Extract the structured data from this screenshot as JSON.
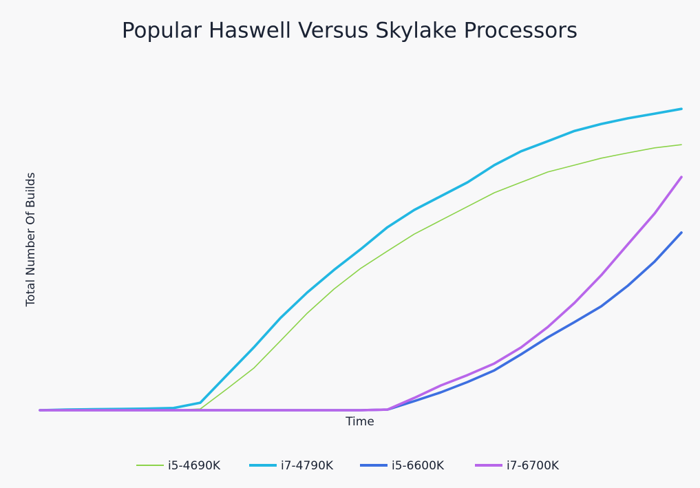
{
  "chart_data": {
    "type": "line",
    "title": "Popular Haswell Versus Skylake Processors",
    "xlabel": "Time",
    "ylabel": "Total Number Of Builds",
    "categories": [
      null,
      null,
      null,
      null,
      null,
      null,
      null,
      null,
      null,
      null,
      null,
      null,
      null,
      null,
      null,
      null,
      null,
      null,
      null,
      null,
      null,
      null,
      null,
      null,
      null
    ],
    "ylim": [
      0,
      100
    ],
    "series": [
      {
        "name": "i5-4690K",
        "color": "#8cd34a",
        "width": "thin",
        "values": [
          0,
          0,
          0,
          0,
          0,
          0,
          0.4,
          6.8,
          13.4,
          22.1,
          30.9,
          38.6,
          45.2,
          50.7,
          56.1,
          60.5,
          64.9,
          69.3,
          72.6,
          75.9,
          78.1,
          80.3,
          82,
          83.6,
          84.6
        ]
      },
      {
        "name": "i7-4790K",
        "color": "#22b7e2",
        "width": "thick",
        "values": [
          0,
          0.2,
          0.3,
          0.4,
          0.5,
          0.7,
          2.4,
          11.2,
          20,
          29.4,
          37.5,
          44.7,
          51.3,
          58.3,
          63.8,
          68.2,
          72.6,
          78.1,
          82.5,
          85.7,
          89,
          91.2,
          93,
          94.5,
          96
        ]
      },
      {
        "name": "i5-6600K",
        "color": "#3d6fe0",
        "width": "thick",
        "values": [
          0,
          0,
          0,
          0,
          0,
          0,
          0,
          0,
          0,
          0,
          0,
          0,
          0,
          0.2,
          2.9,
          5.7,
          9,
          12.7,
          17.8,
          23.2,
          28.1,
          33.1,
          39.7,
          47.4,
          56.6
        ]
      },
      {
        "name": "i7-6700K",
        "color": "#b866ea",
        "width": "thick",
        "values": [
          0,
          0,
          0,
          0,
          0,
          0,
          0,
          0,
          0,
          0,
          0,
          0,
          0,
          0.2,
          3.9,
          7.9,
          11.2,
          14.9,
          20,
          26.5,
          34.2,
          43,
          52.9,
          62.7,
          74.3
        ]
      }
    ]
  }
}
